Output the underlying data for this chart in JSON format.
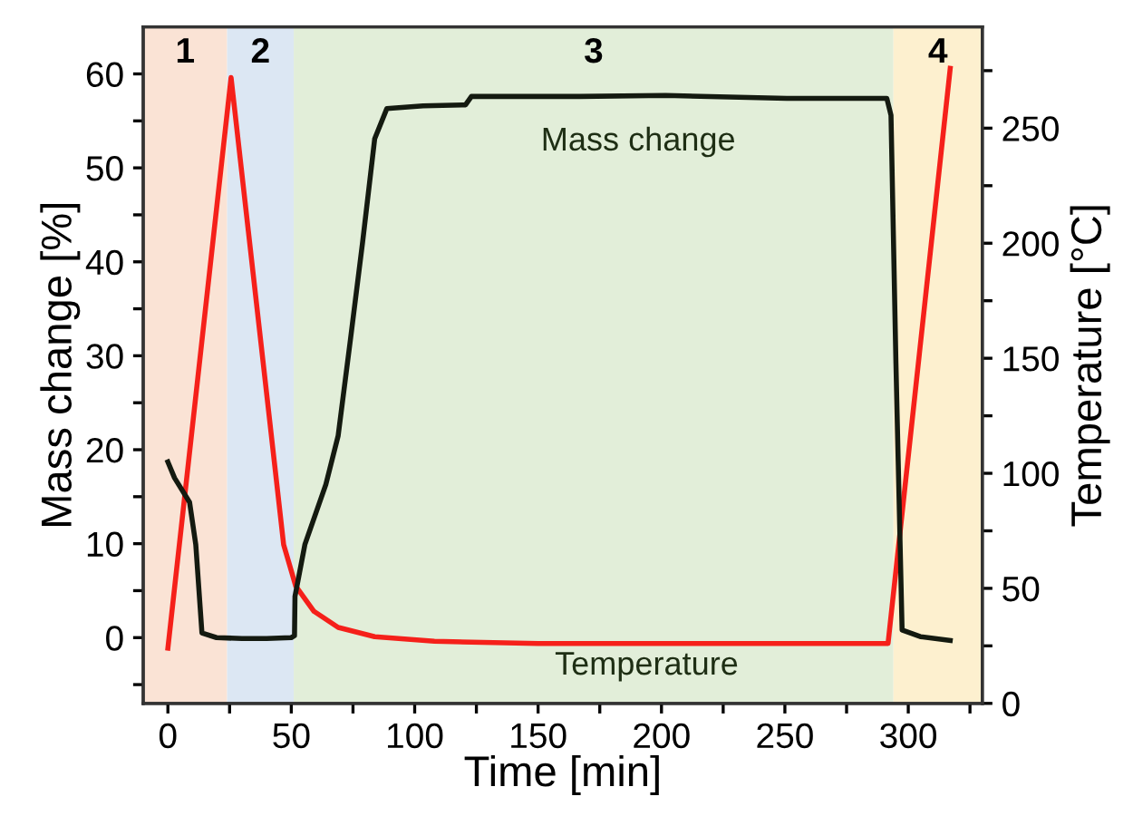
{
  "chart_data": {
    "type": "line",
    "xlabel": "Time [min]",
    "ylabel": "Mass change [%]",
    "y2label": "Temperature [°C]",
    "series": [
      {
        "name": "Mass change",
        "color": "#141a10",
        "x": [
          0,
          2.7,
          8.8,
          11.3,
          13.8,
          19.7,
          30,
          40,
          50,
          51.3,
          51.5,
          55.5,
          64,
          69,
          74,
          78.9,
          83.8,
          88.7,
          103.4,
          120.6,
          123,
          167,
          201.7,
          250.8,
          291.3,
          293,
          295,
          297.5,
          304.9,
          317
        ],
        "values": [
          18.7,
          17.0,
          14.4,
          9.9,
          0.5,
          0.0,
          -0.1,
          -0.1,
          0.0,
          0.2,
          4.4,
          9.9,
          16.3,
          21.5,
          31.8,
          42.1,
          53.1,
          56.3,
          56.6,
          56.7,
          57.6,
          57.6,
          57.7,
          57.4,
          57.4,
          55.6,
          29.2,
          0.8,
          0.1,
          -0.3
        ]
      },
      {
        "name": "Temperature",
        "color": "#f5201a",
        "axis": "y2",
        "x": [
          0,
          25.6,
          46.9,
          51.8,
          59.2,
          69,
          83.8,
          108,
          150,
          200,
          250,
          291.8,
          317
        ],
        "values": [
          24,
          272,
          69,
          51,
          40,
          33,
          29,
          27,
          26,
          26,
          26,
          26,
          276
        ]
      }
    ],
    "xlim": [
      -10,
      330
    ],
    "xticks": [
      0,
      {
        "value": 25,
        "label": null
      },
      50,
      {
        "value": 75,
        "label": null
      },
      100,
      {
        "value": 125,
        "label": null
      },
      150,
      {
        "value": 175,
        "label": null
      },
      200,
      {
        "value": 225,
        "label": null
      },
      250,
      {
        "value": 275,
        "label": null
      },
      300,
      {
        "value": 325,
        "label": null
      }
    ],
    "ylim": [
      -7,
      65
    ],
    "yticks": [
      {
        "value": -5,
        "label": null
      },
      0,
      {
        "value": 5,
        "label": null
      },
      10,
      {
        "value": 15,
        "label": null
      },
      20,
      {
        "value": 25,
        "label": null
      },
      30,
      {
        "value": 35,
        "label": null
      },
      40,
      {
        "value": 45,
        "label": null
      },
      50,
      {
        "value": 55,
        "label": null
      },
      60
    ],
    "y2lim": [
      0,
      294
    ],
    "y2ticks": [
      0,
      {
        "value": 25,
        "label": null
      },
      50,
      {
        "value": 75,
        "label": null
      },
      100,
      {
        "value": 125,
        "label": null
      },
      150,
      {
        "value": 175,
        "label": null
      },
      200,
      {
        "value": 225,
        "label": null
      },
      250,
      {
        "value": 275,
        "label": null
      }
    ],
    "bands": [
      {
        "axis": "x",
        "from": -10,
        "to": 24,
        "label": "1",
        "color": "#fae3d5"
      },
      {
        "axis": "x",
        "from": 24,
        "to": 51,
        "label": "2",
        "color": "#dce7f3"
      },
      {
        "axis": "x",
        "from": 51,
        "to": 294,
        "label": "3",
        "color": "#e2eed9"
      },
      {
        "axis": "x",
        "from": 294,
        "to": 330,
        "label": "4",
        "color": "#fdf0cf"
      }
    ],
    "grid": false,
    "legend": false,
    "line_style": "solid",
    "marker": "none"
  }
}
